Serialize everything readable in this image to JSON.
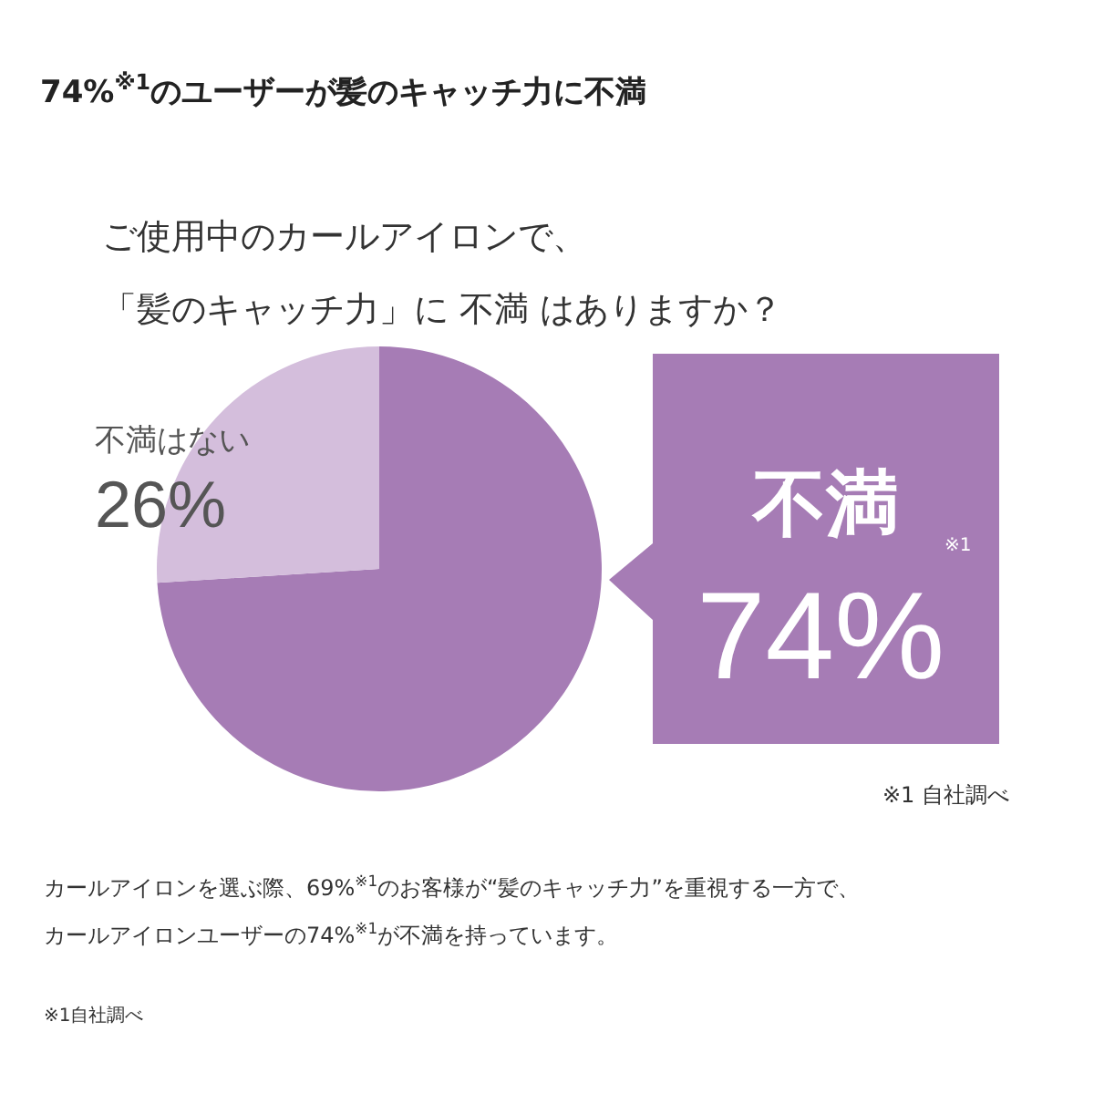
{
  "chart_data": {
    "type": "pie",
    "title": "74%$^{※1}$のユーザーが髪のキャッチ力に不満",
    "subtitle": "ご使用中のカールアイロンで、",
    "categories": [
      "不満",
      "不満はない"
    ],
    "values": [
      74,
      26
    ],
    "colors": [
      "#a67cb5",
      "#d4bedc"
    ],
    "value_labels": [
      "74%",
      "26%"
    ],
    "annotations": [
      "※1",
      "※1 自社調べ",
      "カールアイロンを選ぶ際、69%$^{※1}$のお客様が“髪のキャッチ力”を重視する一方で、",
      "カールアイロンユーザーの74%$^{※1}$が不満を持っています。",
      "※1自社調べ",
      "「髪のキャッチ力」に 不満 はありますか？"
    ]
  }
}
